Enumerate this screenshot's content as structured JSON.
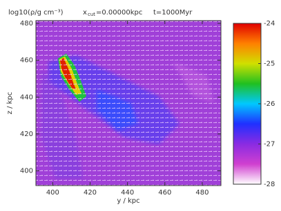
{
  "chart_data": {
    "type": "heatmap",
    "title": {
      "quantity": "log10(ρ/g cm⁻³)",
      "x": "x",
      "sub": "cut",
      "cut": "=0.00000kpc",
      "time": "t=1000Myr"
    },
    "x_label": "y / kpc",
    "y_label": "z / kpc",
    "xlim": [
      391,
      490
    ],
    "xticks": [
      400,
      420,
      440,
      460,
      480
    ],
    "ylim": [
      392,
      481.5
    ],
    "yticks": [
      400,
      420,
      440,
      460,
      480
    ],
    "clim": [
      -28,
      -24
    ],
    "cticks": [
      -24,
      -25,
      -26,
      -27,
      -28
    ],
    "colormap": [
      "#ffffff",
      "#d040d0",
      "#8a2be2",
      "#2030ff",
      "#00c8ff",
      "#20c020",
      "#d0e000",
      "#ff8000",
      "#e00000"
    ]
  }
}
